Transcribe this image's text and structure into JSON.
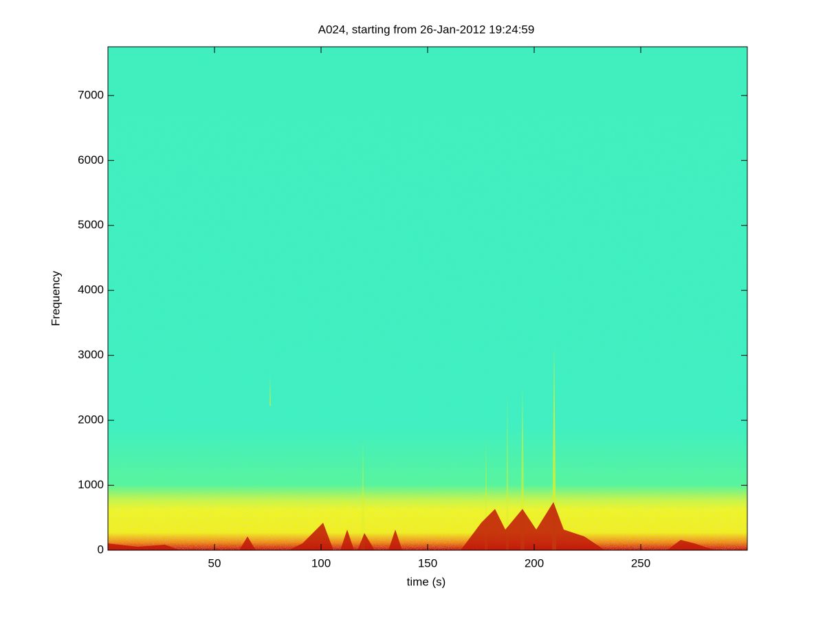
{
  "chart_data": {
    "type": "spectrogram",
    "title": "A024, starting from 26-Jan-2012 19:24:59",
    "x_label": "time (s)",
    "y_label": "Frequency",
    "xlim": [
      0,
      300
    ],
    "xticks": [
      50,
      100,
      150,
      200,
      250
    ],
    "ylim": [
      0,
      7750
    ],
    "yticks": [
      0,
      1000,
      2000,
      3000,
      4000,
      5000,
      6000,
      7000
    ]
  }
}
